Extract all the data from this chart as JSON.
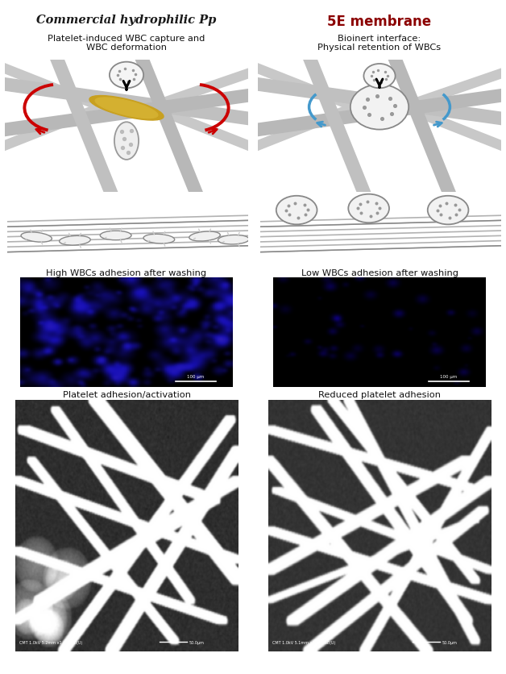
{
  "left_bg": "#e8e8e8",
  "right_bg": "#fce8e8",
  "left_title": "Commercial hydrophilic Pp",
  "right_title": "5E membrane",
  "left_title_color": "#1a1a1a",
  "right_title_color": "#8b0000",
  "left_subtitle": "Platelet-induced WBC capture and\nWBC deformation",
  "right_subtitle": "Bioinert interface:\nPhysical retention of WBCs",
  "left_label1": "High WBCs adhesion after washing",
  "right_label1": "Low WBCs adhesion after washing",
  "left_label2": "Platelet adhesion/activation",
  "right_label2": "Reduced platelet adhesion",
  "divider_color": "#bbbbbb",
  "fig_width": 6.28,
  "fig_height": 8.37,
  "dpi": 100
}
